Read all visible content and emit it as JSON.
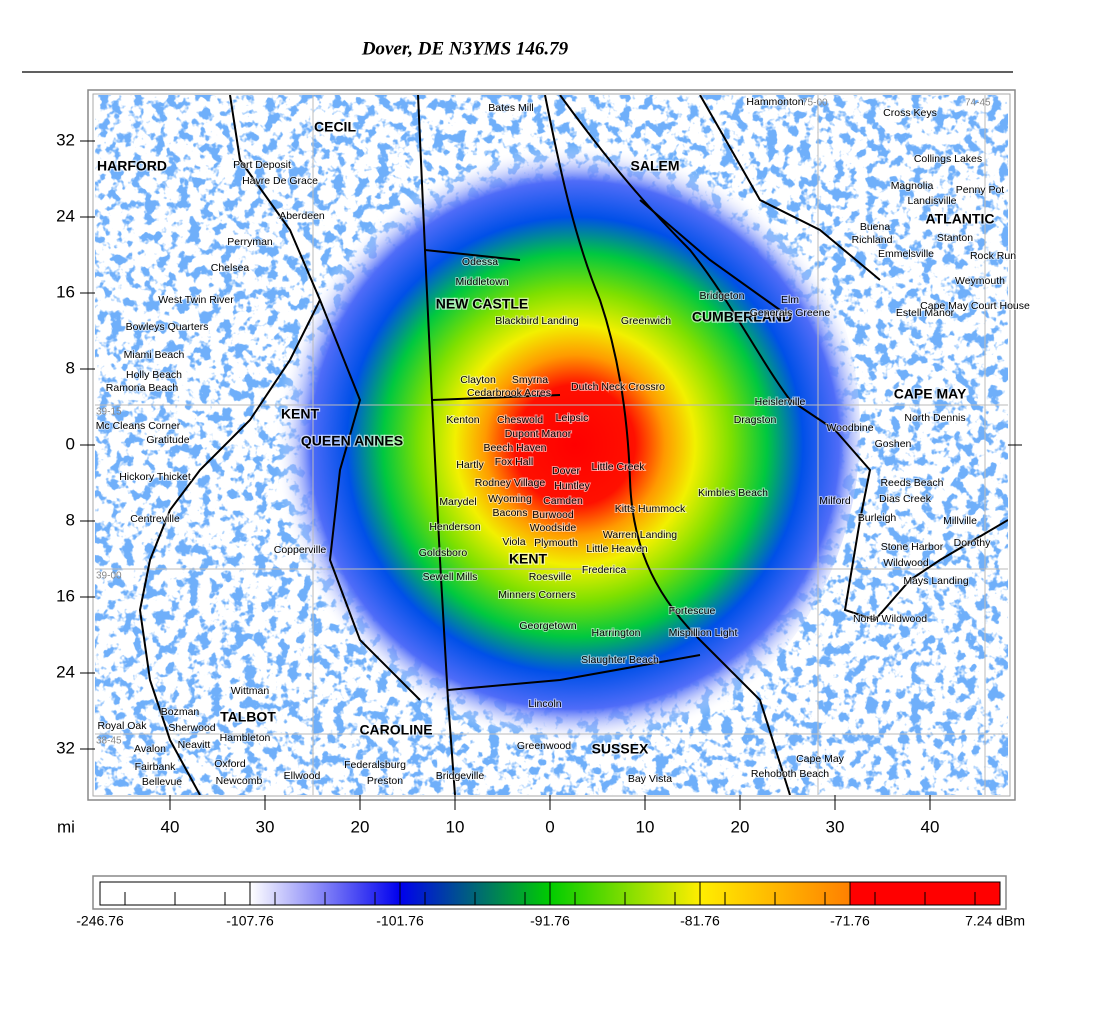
{
  "title": "Dover, DE N3YMS  146.79",
  "axes": {
    "unit": "mi",
    "y_labels": [
      "32",
      "24",
      "16",
      "8",
      "0",
      "8",
      "16",
      "24",
      "32"
    ],
    "x_labels": [
      "40",
      "30",
      "20",
      "10",
      "0",
      "10",
      "20",
      "30",
      "40"
    ]
  },
  "graticule": [
    "75-00",
    "74-45",
    "39-15",
    "39-00",
    "38-45"
  ],
  "counties": [
    "CECIL",
    "HARFORD",
    "SALEM",
    "ATLANTIC",
    "NEW CASTLE",
    "CUMBERLAND",
    "CAPE MAY",
    "KENT",
    "QUEEN ANNES",
    "KENT",
    "TALBOT",
    "CAROLINE",
    "SUSSEX"
  ],
  "towns": [
    "Dover",
    "Cheswold",
    "Leipsic",
    "Kenton",
    "Dupont Manor",
    "Beech Haven",
    "Hartly",
    "Fox Hall",
    "Little Creek",
    "Rodney Village",
    "Huntley",
    "Wyoming",
    "Camden",
    "Marydel",
    "Bacons",
    "Burwood",
    "Kitts Hummock",
    "Henderson",
    "Woodside",
    "Viola",
    "Plymouth",
    "Little Heaven",
    "Warren Landing",
    "Goldsboro",
    "Frederica",
    "Roesville",
    "Sewell Mills",
    "Minners Corners",
    "Smyrna",
    "Clayton",
    "Cedarbrook Acres",
    "Dutch Neck Crossro",
    "Blackbird Landing",
    "Odessa",
    "Middletown",
    "Greenwich",
    "Bridgeton",
    "Generals Greene",
    "Kimbles Beach",
    "Milford",
    "Harrington",
    "Georgetown",
    "Bay Vista",
    "Rehoboth Beach",
    "Cape May",
    "North Wildwood",
    "Wildwood",
    "Mays Landing",
    "Weymouth",
    "Stanton",
    "Bates Mill",
    "Cross Keys",
    "Hammonton",
    "Collings Lakes",
    "Magnolia",
    "Penny Pot",
    "Landisville",
    "Buena",
    "Richland",
    "Emmelsville",
    "Rock Run",
    "Port Deposit",
    "Havre De Grace",
    "Aberdeen",
    "Perryman",
    "Chelsea",
    "West Twin River",
    "Bowleys Quarters",
    "Miami Beach",
    "Holly Beach",
    "Ramona Beach",
    "Mc Cleans Corner",
    "Gratitude",
    "Hickory Thicket",
    "Centreville",
    "Copperville",
    "Wittman",
    "Bozman",
    "Sherwood",
    "Royal Oak",
    "Neavitt",
    "Avalon",
    "Fairbank",
    "Bellevue",
    "Oxford",
    "Newcomb",
    "Hambleton",
    "Ellwood",
    "Preston",
    "Federalsburg",
    "Bridgeville",
    "Greenwood",
    "Lincoln",
    "Slaughter Beach",
    "Mispillion Light",
    "Fortescue",
    "Dragston",
    "Heislerville",
    "Woodbine",
    "North Dennis",
    "Goshen",
    "Reeds Beach",
    "Dias Creek",
    "Burleigh",
    "Stone Harbor",
    "Dorothy",
    "Estell Manor",
    "Cape May Court House",
    "Millville",
    "Elm"
  ],
  "colorbar": {
    "labels": [
      "-246.76",
      "-107.76",
      "-101.76",
      "-91.76",
      "-81.76",
      "-71.76",
      "7.24 dBm"
    ]
  }
}
